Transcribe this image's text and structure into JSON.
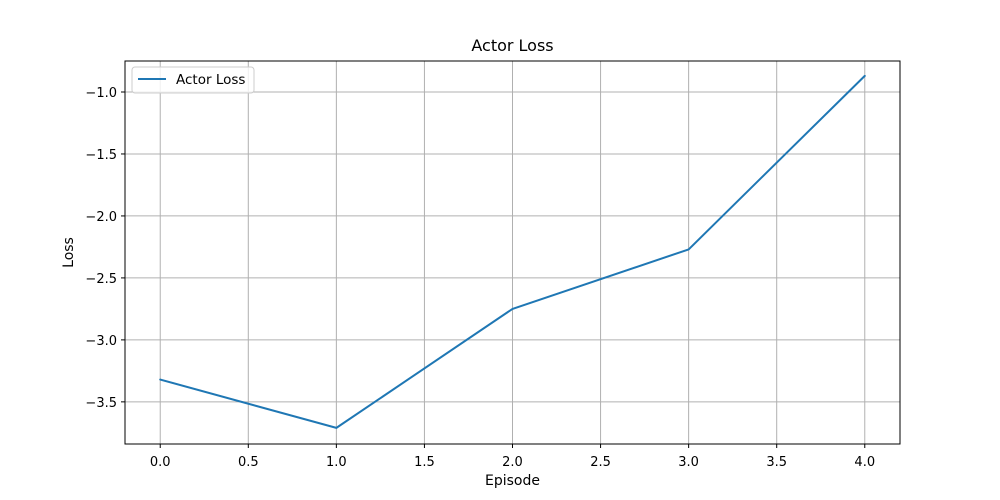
{
  "chart_data": {
    "type": "line",
    "title": "Actor Loss",
    "xlabel": "Episode",
    "ylabel": "Loss",
    "x": [
      0,
      1,
      2,
      3,
      4
    ],
    "series": [
      {
        "name": "Actor Loss",
        "color": "#1f77b4",
        "values": [
          -3.32,
          -3.71,
          -2.75,
          -2.27,
          -0.87
        ]
      }
    ],
    "xlim": [
      -0.2,
      4.2
    ],
    "ylim": [
      -3.84,
      -0.75
    ],
    "xticks": [
      0.0,
      0.5,
      1.0,
      1.5,
      2.0,
      2.5,
      3.0,
      3.5,
      4.0
    ],
    "xtick_labels": [
      "0.0",
      "0.5",
      "1.0",
      "1.5",
      "2.0",
      "2.5",
      "3.0",
      "3.5",
      "4.0"
    ],
    "yticks": [
      -3.5,
      -3.0,
      -2.5,
      -2.0,
      -1.5,
      -1.0
    ],
    "ytick_labels": [
      "−3.5",
      "−3.0",
      "−2.5",
      "−2.0",
      "−1.5",
      "−1.0"
    ],
    "grid": true,
    "legend": "upper-left"
  }
}
